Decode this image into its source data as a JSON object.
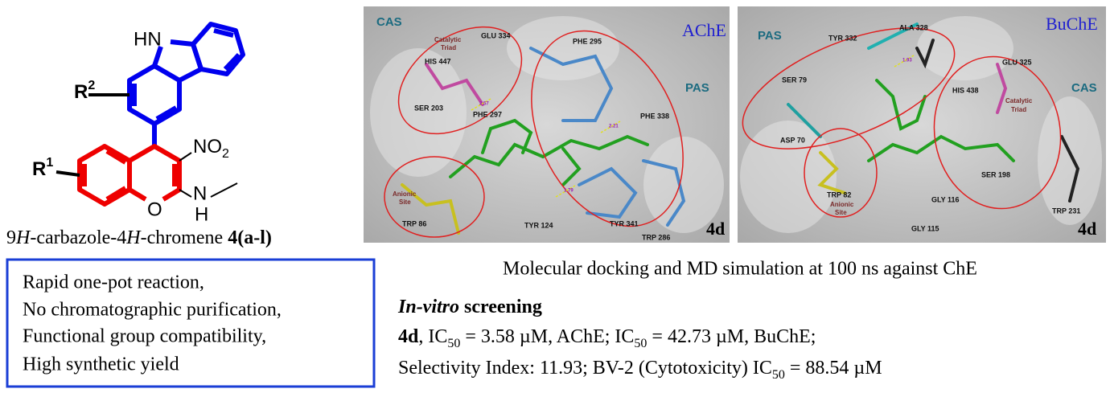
{
  "structure": {
    "hn": "HN",
    "r2": [
      "R",
      "2"
    ],
    "r1": [
      "R",
      "1"
    ],
    "no2": [
      "NO",
      "2"
    ],
    "o": "O",
    "n": "N",
    "h": "H"
  },
  "caption": [
    "9",
    "H",
    "-carbazole-4",
    "H",
    "-chromene ",
    "4(",
    "a-l",
    ")"
  ],
  "features": [
    "Rapid one-pot reaction,",
    "No chromatographic purification,",
    "Functional group compatibility,",
    "High synthetic yield"
  ],
  "panels": [
    {
      "title": "AChE",
      "compound": "4d",
      "labels": [
        "CAS",
        "Catalytic",
        "Triad",
        "GLU 334",
        "HIS 447",
        "SER 203",
        "PHE 297",
        "PHE 295",
        "PHE 338",
        "PAS",
        "Anionic",
        "Site",
        "TRP 86",
        "TYR 124",
        "TYR 341",
        "TRP 286"
      ],
      "distances": [
        "2.57",
        "2.21",
        "1.79"
      ]
    },
    {
      "title": "BuChE",
      "compound": "4d",
      "labels": [
        "PAS",
        "TYR 332",
        "ALA 328",
        "SER 79",
        "ASP 70",
        "TRP 82",
        "Anionic",
        "Site",
        "GLU 325",
        "HIS 438",
        "Catalytic",
        "Triad",
        "CAS",
        "SER 198",
        "GLY 116",
        "GLY 115",
        "TRP 231"
      ],
      "distances": [
        "1.93"
      ]
    }
  ],
  "docking_caption": "Molecular docking and MD simulation at 100 ns against ChE",
  "screening": {
    "title": [
      "In-vitro",
      " screening"
    ],
    "lines": [
      [
        "4d",
        ", IC",
        "50",
        " = 3.58 µM, AChE; IC",
        "50",
        " = 42.73 µM, BuChE;"
      ],
      [
        "Selectivity Index: 11.93; BV-2 (Cytotoxicity) IC",
        "50",
        " = 88.54 µM"
      ]
    ]
  }
}
